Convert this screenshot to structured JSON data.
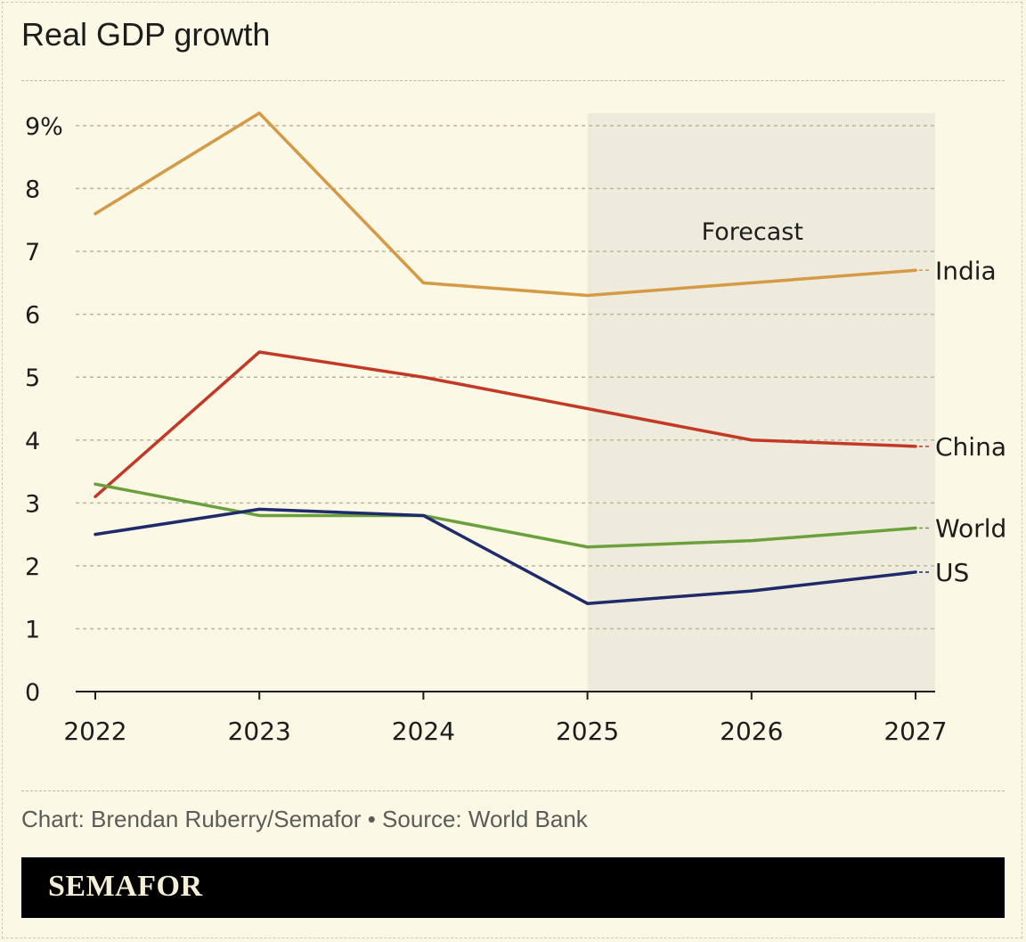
{
  "header": {
    "title": "Real GDP growth"
  },
  "footer": {
    "credit": "Chart: Brendan Ruberry/Semafor • Source: World Bank",
    "logo": "SEMAFOR"
  },
  "chart_data": {
    "type": "line",
    "title": "Real GDP growth",
    "xlabel": "",
    "ylabel": "",
    "x": [
      "2022",
      "2023",
      "2024",
      "2025",
      "2026",
      "2027"
    ],
    "ylim": [
      0,
      9
    ],
    "yticks": [
      0,
      1,
      2,
      3,
      4,
      5,
      6,
      7,
      8,
      9
    ],
    "ytick_labels": [
      "0",
      "1",
      "2",
      "3",
      "4",
      "5",
      "6",
      "7",
      "8",
      "9%"
    ],
    "grid": true,
    "forecast_region": {
      "label": "Forecast",
      "from": "2025",
      "to": "2027"
    },
    "series": [
      {
        "name": "India",
        "color": "#d49a45",
        "values": [
          7.6,
          9.2,
          6.5,
          6.3,
          6.5,
          6.7
        ]
      },
      {
        "name": "China",
        "color": "#c23a25",
        "values": [
          3.1,
          5.4,
          5.0,
          4.5,
          4.0,
          3.9
        ]
      },
      {
        "name": "World",
        "color": "#6aa13c",
        "values": [
          3.3,
          2.8,
          2.8,
          2.3,
          2.4,
          2.6
        ]
      },
      {
        "name": "US",
        "color": "#1f2a6b",
        "values": [
          2.5,
          2.9,
          2.8,
          1.4,
          1.6,
          1.9
        ]
      }
    ],
    "colors": {
      "forecast_shade": "#efebdc",
      "grid": "#b9b5a2",
      "axis": "#1d1d1b"
    }
  }
}
